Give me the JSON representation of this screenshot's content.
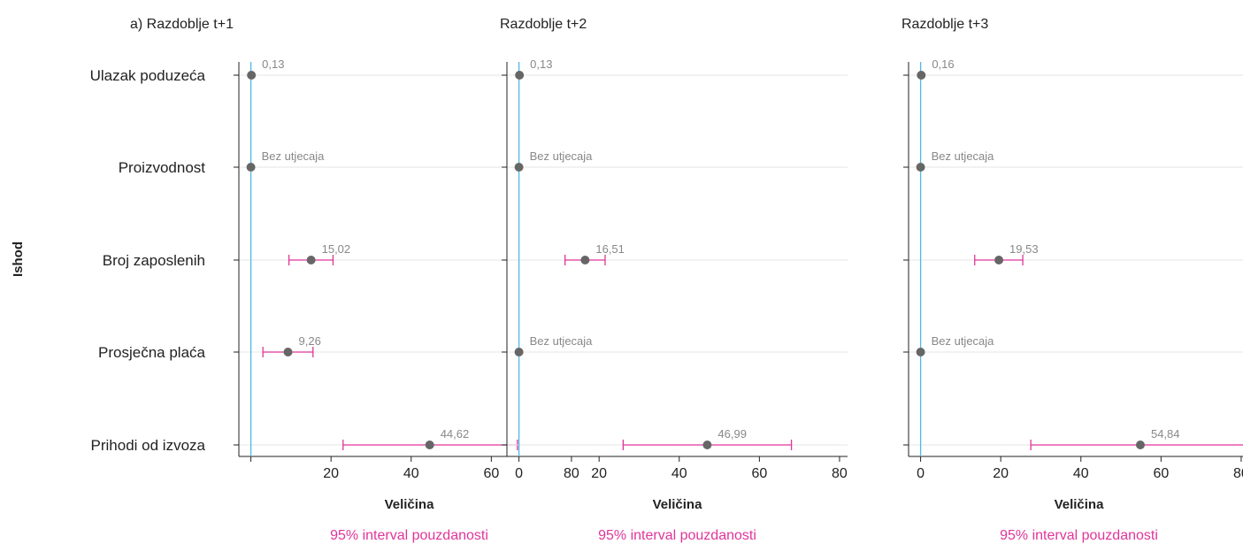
{
  "y_axis_title": "Ishod",
  "categories": [
    "Ulazak poduzeća",
    "Proizvodnost",
    "Broj zaposlenih",
    "Prosječna plaća",
    "Prihodi od izvoza"
  ],
  "colors": {
    "point": "#666666",
    "ci": "#e0359a",
    "ref_line": "#4fb8e6",
    "grid": "#e6e6e6",
    "axis": "#222222",
    "label": "#888888"
  },
  "chart_data": [
    {
      "type": "scatter",
      "title": "a) Razdoblje t+1",
      "xlabel": "Veličina",
      "ci_label": "95% interval pouzdanosti",
      "xlim": [
        -3,
        82
      ],
      "xticks": [
        20,
        40,
        60,
        80
      ],
      "points": [
        {
          "category": "Ulazak poduzeća",
          "value": 0.13,
          "label": "0,13",
          "ci": null
        },
        {
          "category": "Proizvodnost",
          "value": 0,
          "label": "Bez utjecaja",
          "ci": null
        },
        {
          "category": "Broj zaposlenih",
          "value": 15.02,
          "label": "15,02",
          "ci": [
            9.5,
            20.5
          ]
        },
        {
          "category": "Prosječna plaća",
          "value": 9.26,
          "label": "9,26",
          "ci": [
            3,
            15.5
          ]
        },
        {
          "category": "Prihodi od izvoza",
          "value": 44.62,
          "label": "44,62",
          "ci": [
            23,
            66.5
          ]
        }
      ]
    },
    {
      "type": "scatter",
      "title": "Razdoblje t+2",
      "xlabel": "Veličina",
      "ci_label": "95% interval pouzdanosti",
      "xlim": [
        -3,
        82
      ],
      "xticks": [
        0,
        20,
        40,
        60,
        80
      ],
      "points": [
        {
          "category": "Ulazak poduzeća",
          "value": 0.13,
          "label": "0,13",
          "ci": null
        },
        {
          "category": "Proizvodnost",
          "value": 0,
          "label": "Bez utjecaja",
          "ci": null
        },
        {
          "category": "Broj zaposlenih",
          "value": 16.51,
          "label": "16,51",
          "ci": [
            11.5,
            21.5
          ]
        },
        {
          "category": "Prosječna plaća",
          "value": 0,
          "label": "Bez utjecaja",
          "ci": null
        },
        {
          "category": "Prihodi od izvoza",
          "value": 46.99,
          "label": "46,99",
          "ci": [
            26,
            68
          ]
        }
      ]
    },
    {
      "type": "scatter",
      "title": "Razdoblje t+3",
      "xlabel": "Veličina",
      "ci_label": "95% interval pouzdanosti",
      "xlim": [
        -3,
        82
      ],
      "xticks": [
        0,
        20,
        40,
        60,
        80
      ],
      "points": [
        {
          "category": "Ulazak poduzeća",
          "value": 0.16,
          "label": "0,16",
          "ci": null
        },
        {
          "category": "Proizvodnost",
          "value": 0,
          "label": "Bez utjecaja",
          "ci": null
        },
        {
          "category": "Broj zaposlenih",
          "value": 19.53,
          "label": "19,53",
          "ci": [
            13.5,
            25.5
          ]
        },
        {
          "category": "Prosječna plaća",
          "value": 0,
          "label": "Bez utjecaja",
          "ci": null
        },
        {
          "category": "Prihodi od izvoza",
          "value": 54.84,
          "label": "54,84",
          "ci": [
            27.5,
            82
          ]
        }
      ]
    }
  ]
}
